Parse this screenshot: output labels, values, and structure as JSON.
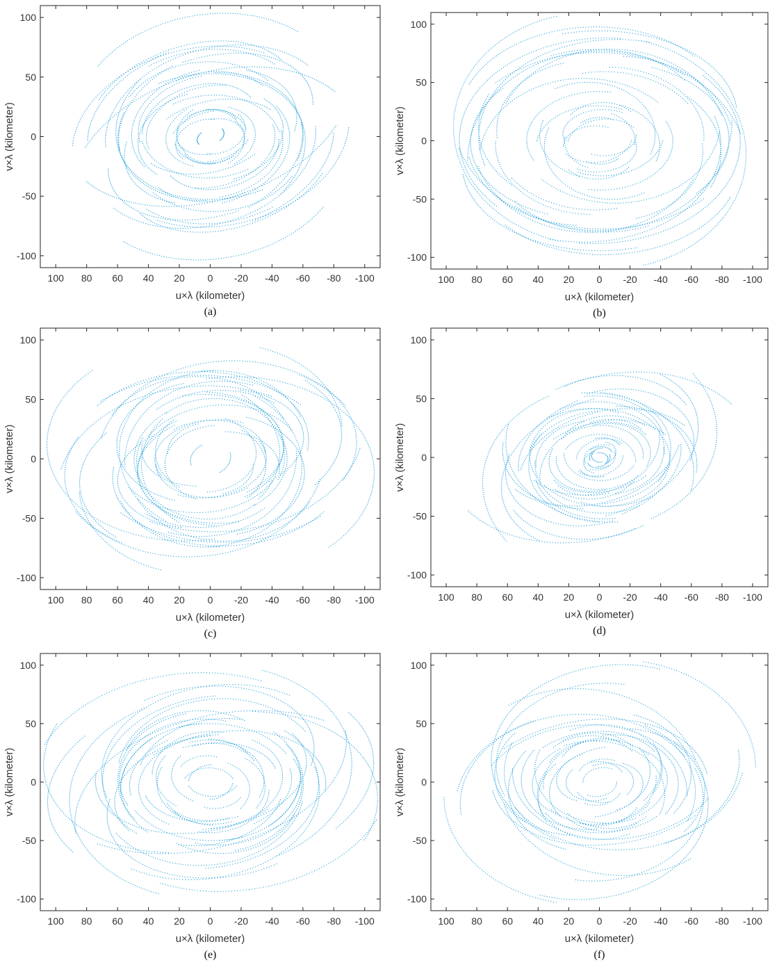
{
  "figure": {
    "point_color": "#1a9bd7",
    "axis_color": "#222222"
  },
  "chart_data": [
    {
      "type": "scatter",
      "caption": "(a)",
      "xlabel": "u×λ (kilometer)",
      "ylabel": "v×λ (kilometer)",
      "xlim": [
        110,
        -110
      ],
      "ylim": [
        -110,
        110
      ],
      "x_reversed": true,
      "xticks": [
        100,
        80,
        60,
        40,
        20,
        0,
        -20,
        -40,
        -60,
        -80,
        -100
      ],
      "yticks": [
        100,
        50,
        0,
        -50,
        -100
      ],
      "grid": false,
      "pattern": {
        "track_count": 30,
        "max_radius": 104,
        "min_radius": 4,
        "aspect": 0.85,
        "tilt_deg": -35,
        "seed": 11
      }
    },
    {
      "type": "scatter",
      "caption": "(b)",
      "xlabel": "u×λ (kilometer)",
      "ylabel": "v×λ (kilometer)",
      "xlim": [
        110,
        -110
      ],
      "ylim": [
        -110,
        110
      ],
      "x_reversed": true,
      "xticks": [
        100,
        80,
        60,
        40,
        20,
        0,
        -20,
        -40,
        -60,
        -80,
        -100
      ],
      "yticks": [
        100,
        50,
        0,
        -50,
        -100
      ],
      "grid": false,
      "pattern": {
        "track_count": 26,
        "max_radius": 104,
        "min_radius": 16,
        "aspect": 0.95,
        "tilt_deg": -5,
        "seed": 23
      }
    },
    {
      "type": "scatter",
      "caption": "(c)",
      "xlabel": "u×λ (kilometer)",
      "ylabel": "v×λ (kilometer)",
      "xlim": [
        110,
        -110
      ],
      "ylim": [
        -110,
        110
      ],
      "x_reversed": true,
      "xticks": [
        100,
        80,
        60,
        40,
        20,
        0,
        -20,
        -40,
        -60,
        -80,
        -100
      ],
      "yticks": [
        100,
        50,
        0,
        -50,
        -100
      ],
      "grid": false,
      "pattern": {
        "track_count": 28,
        "max_radius": 100,
        "min_radius": 14,
        "aspect": 0.95,
        "tilt_deg": -10,
        "seed": 37
      }
    },
    {
      "type": "scatter",
      "caption": "(d)",
      "xlabel": "u×λ (kilometer)",
      "ylabel": "v×λ (kilometer)",
      "xlim": [
        110,
        -110
      ],
      "ylim": [
        -110,
        110
      ],
      "x_reversed": true,
      "xticks": [
        100,
        80,
        60,
        40,
        20,
        0,
        -20,
        -40,
        -60,
        -80,
        -100
      ],
      "yticks": [
        100,
        50,
        0,
        -50,
        -100
      ],
      "grid": false,
      "pattern": {
        "track_count": 30,
        "max_radius": 92,
        "min_radius": 5,
        "aspect": 0.9,
        "tilt_deg": -30,
        "seed": 41
      }
    },
    {
      "type": "scatter",
      "caption": "(e)",
      "xlabel": "u×λ (kilometer)",
      "ylabel": "v×λ (kilometer)",
      "xlim": [
        110,
        -110
      ],
      "ylim": [
        -110,
        110
      ],
      "x_reversed": true,
      "xticks": [
        100,
        80,
        60,
        40,
        20,
        0,
        -20,
        -40,
        -60,
        -80,
        -100
      ],
      "yticks": [
        100,
        50,
        0,
        -50,
        -100
      ],
      "grid": false,
      "pattern": {
        "track_count": 30,
        "max_radius": 104,
        "min_radius": 8,
        "aspect": 0.9,
        "tilt_deg": -20,
        "seed": 53
      }
    },
    {
      "type": "scatter",
      "caption": "(f)",
      "xlabel": "u×λ (kilometer)",
      "ylabel": "v×λ (kilometer)",
      "xlim": [
        110,
        -110
      ],
      "ylim": [
        -110,
        110
      ],
      "x_reversed": true,
      "xticks": [
        100,
        80,
        60,
        40,
        20,
        0,
        -20,
        -40,
        -60,
        -80,
        -100
      ],
      "yticks": [
        100,
        50,
        0,
        -50,
        -100
      ],
      "grid": false,
      "pattern": {
        "track_count": 28,
        "max_radius": 94,
        "min_radius": 10,
        "aspect": 0.95,
        "tilt_deg": -25,
        "seed": 67
      }
    }
  ]
}
